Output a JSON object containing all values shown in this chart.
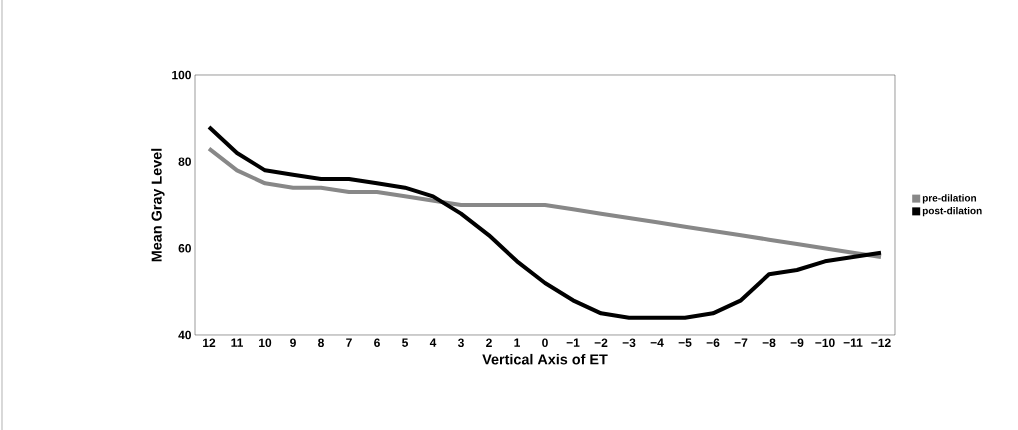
{
  "chart_data": {
    "type": "line",
    "xlabel": "Vertical Axis of ET",
    "ylabel": "Mean Gray Level",
    "categories": [
      "12",
      "11",
      "10",
      "9",
      "8",
      "7",
      "6",
      "5",
      "4",
      "3",
      "2",
      "1",
      "0",
      "−1",
      "−2",
      "−3",
      "−4",
      "−5",
      "−6",
      "−7",
      "−8",
      "−9",
      "−10",
      "−11",
      "−12"
    ],
    "series": [
      {
        "name": "pre-dilation",
        "color": "#888888",
        "values": [
          83,
          78,
          75,
          74,
          74,
          73,
          73,
          72,
          71,
          70,
          70,
          70,
          70,
          69,
          68,
          67,
          66,
          65,
          64,
          63,
          62,
          61,
          60,
          59,
          58
        ]
      },
      {
        "name": "post-dilation",
        "color": "#000000",
        "values": [
          88,
          82,
          78,
          77,
          76,
          76,
          75,
          74,
          72,
          68,
          63,
          57,
          52,
          48,
          45,
          44,
          44,
          44,
          45,
          48,
          54,
          55,
          57,
          58,
          59
        ]
      }
    ],
    "ylim": [
      40,
      100
    ],
    "yticks": [
      40,
      60,
      80,
      100
    ],
    "legend": "right",
    "grid": false,
    "marker": "none",
    "line_style": "solid"
  }
}
